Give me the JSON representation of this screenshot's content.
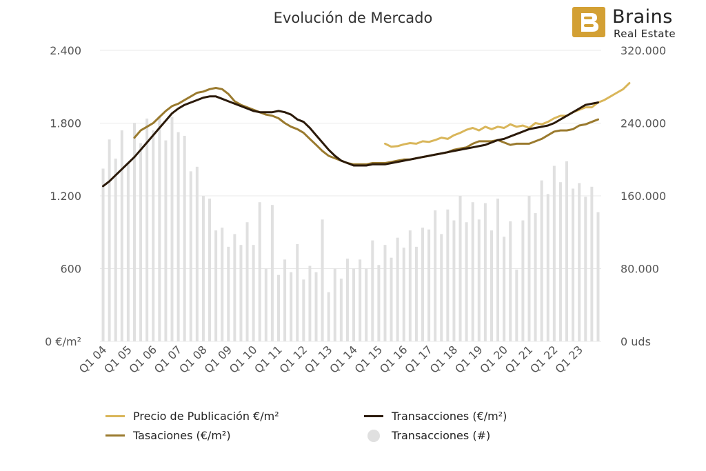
{
  "chart_data": {
    "type": "line+bar",
    "title": "Evolución de Mercado",
    "colors": {
      "precio": "#d9b65a",
      "transacciones_eur": "#2b1a0a",
      "tasaciones": "#9a7a2e",
      "transacciones_num": "#e0e0e0",
      "grid": "#e8e8e8",
      "axis_text": "#555555"
    },
    "y_left": {
      "ticks": [
        0,
        600,
        1200,
        1800,
        2400
      ],
      "tick_labels": [
        "0 €/m²",
        "600",
        "1.200",
        "1.800",
        "2.400"
      ],
      "range": [
        0,
        2400
      ]
    },
    "y_right": {
      "ticks": [
        0,
        80000,
        160000,
        240000,
        320000
      ],
      "tick_labels": [
        "0 uds",
        "80.000",
        "160.000",
        "240.000",
        "320.000"
      ],
      "range": [
        0,
        320000
      ]
    },
    "x_tick_labels": [
      "Q1 04",
      "Q1 05",
      "Q1 06",
      "Q1 07",
      "Q1 08",
      "Q1 09",
      "Q1 10",
      "Q1 11",
      "Q1 12",
      "Q1 13",
      "Q1 14",
      "Q1 15",
      "Q1 16",
      "Q1 17",
      "Q1 18",
      "Q1 19",
      "Q1 20",
      "Q1 21",
      "Q1 22",
      "Q1 23"
    ],
    "quarters_start": "Q1 04",
    "quarters_count": 80,
    "series": [
      {
        "name": "Transacciones (#)",
        "kind": "bar",
        "axis": "right",
        "values": [
          190000,
          222000,
          201000,
          232000,
          196000,
          240000,
          218000,
          245000,
          232000,
          248000,
          221000,
          247000,
          230000,
          226000,
          187000,
          192000,
          160000,
          157000,
          122000,
          125000,
          104000,
          118000,
          106000,
          131000,
          106000,
          153000,
          80000,
          150000,
          73000,
          90000,
          76000,
          107000,
          68000,
          83000,
          76000,
          134000,
          54000,
          80000,
          69000,
          91000,
          80000,
          90000,
          80000,
          111000,
          84000,
          106000,
          92000,
          114000,
          103000,
          122000,
          104000,
          125000,
          123000,
          144000,
          118000,
          145000,
          133000,
          160000,
          131000,
          153000,
          134000,
          152000,
          122000,
          157000,
          115000,
          132000,
          79000,
          133000,
          160000,
          141000,
          177000,
          162000,
          193000,
          175000,
          198000,
          168000,
          174000,
          159000,
          170000,
          142000
        ]
      },
      {
        "name": "Precio de Publicación €/m²",
        "kind": "line",
        "axis": "left",
        "start_index": 45,
        "values": [
          1630,
          1605,
          1610,
          1625,
          1635,
          1630,
          1650,
          1645,
          1660,
          1680,
          1670,
          1700,
          1720,
          1745,
          1760,
          1740,
          1770,
          1750,
          1770,
          1760,
          1790,
          1770,
          1780,
          1760,
          1800,
          1790,
          1810,
          1840,
          1860,
          1860,
          1890,
          1910,
          1930,
          1930,
          1970,
          1990,
          2020,
          2050,
          2080,
          2130
        ]
      },
      {
        "name": "Tasaciones (€/m²)",
        "kind": "line",
        "axis": "left",
        "start_index": 5,
        "values": [
          1680,
          1740,
          1770,
          1800,
          1850,
          1900,
          1940,
          1960,
          1990,
          2020,
          2050,
          2060,
          2080,
          2090,
          2080,
          2040,
          1980,
          1950,
          1930,
          1910,
          1890,
          1870,
          1860,
          1840,
          1800,
          1770,
          1750,
          1720,
          1670,
          1620,
          1570,
          1530,
          1510,
          1490,
          1470,
          1460,
          1460,
          1460,
          1470,
          1470,
          1470,
          1480,
          1490,
          1500,
          1500,
          1510,
          1520,
          1530,
          1540,
          1550,
          1560,
          1580,
          1590,
          1600,
          1630,
          1650,
          1650,
          1650,
          1660,
          1640,
          1620,
          1630,
          1630,
          1630,
          1650,
          1670,
          1700,
          1730,
          1740,
          1740,
          1750,
          1780,
          1790,
          1810,
          1830
        ]
      },
      {
        "name": "Transacciones (€/m²)",
        "kind": "line",
        "axis": "left",
        "start_index": 0,
        "values": [
          1280,
          1320,
          1370,
          1420,
          1470,
          1520,
          1580,
          1640,
          1700,
          1760,
          1820,
          1880,
          1920,
          1950,
          1970,
          1990,
          2010,
          2020,
          2020,
          2000,
          1980,
          1960,
          1940,
          1920,
          1900,
          1890,
          1890,
          1890,
          1900,
          1890,
          1870,
          1830,
          1810,
          1760,
          1700,
          1640,
          1580,
          1530,
          1490,
          1470,
          1450,
          1450,
          1450,
          1460,
          1460,
          1460,
          1470,
          1480,
          1490,
          1500,
          1510,
          1520,
          1530,
          1540,
          1550,
          1560,
          1570,
          1580,
          1590,
          1600,
          1610,
          1620,
          1640,
          1660,
          1670,
          1690,
          1710,
          1730,
          1750,
          1760,
          1770,
          1780,
          1800,
          1830,
          1860,
          1890,
          1920,
          1950,
          1960,
          1970
        ]
      }
    ],
    "legend_position": "bottom",
    "grid": true
  },
  "logo": {
    "brand": "Brains",
    "sub": "Real Estate"
  },
  "legend": {
    "precio": "Precio de Publicación €/m²",
    "tasaciones": "Tasaciones (€/m²)",
    "trans_eur": "Transacciones (€/m²)",
    "trans_num": "Transacciones (#)"
  }
}
